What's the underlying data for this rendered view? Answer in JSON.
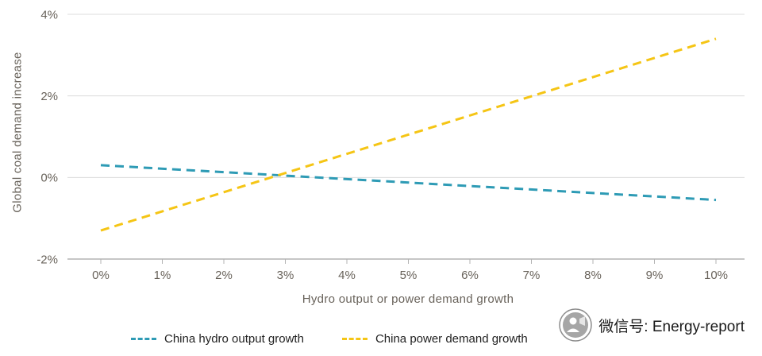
{
  "chart_data": {
    "type": "line",
    "title": "",
    "xlabel": "Hydro output or power demand growth",
    "ylabel": "Global coal demand increase",
    "xlim": [
      0,
      10
    ],
    "ylim": [
      -2,
      4
    ],
    "x_ticks": [
      0,
      1,
      2,
      3,
      4,
      5,
      6,
      7,
      8,
      9,
      10
    ],
    "x_tick_labels": [
      "0%",
      "1%",
      "2%",
      "3%",
      "4%",
      "5%",
      "6%",
      "7%",
      "8%",
      "9%",
      "10%"
    ],
    "y_ticks": [
      -2,
      0,
      2,
      4
    ],
    "y_tick_labels": [
      "-2%",
      "0%",
      "2%",
      "4%"
    ],
    "grid": "horizontal",
    "legend_position": "bottom",
    "line_style": "dashed",
    "series": [
      {
        "name": "China hydro output growth",
        "color": "#2E9BB5",
        "style": "dashed",
        "x": [
          0,
          10
        ],
        "y": [
          0.3,
          -0.55
        ]
      },
      {
        "name": "China power demand growth",
        "color": "#F5C515",
        "style": "dashed",
        "x": [
          0,
          10
        ],
        "y": [
          -1.3,
          3.4
        ]
      }
    ]
  },
  "footer": {
    "wechat_label": "微信号: Energy-report"
  },
  "icons": {
    "logo": "wechat-account-logo"
  },
  "colors": {
    "axis_text": "#69635b",
    "gridline": "#dcdcdc",
    "axis_line": "#b3b3b3",
    "legend_text": "#222222"
  }
}
